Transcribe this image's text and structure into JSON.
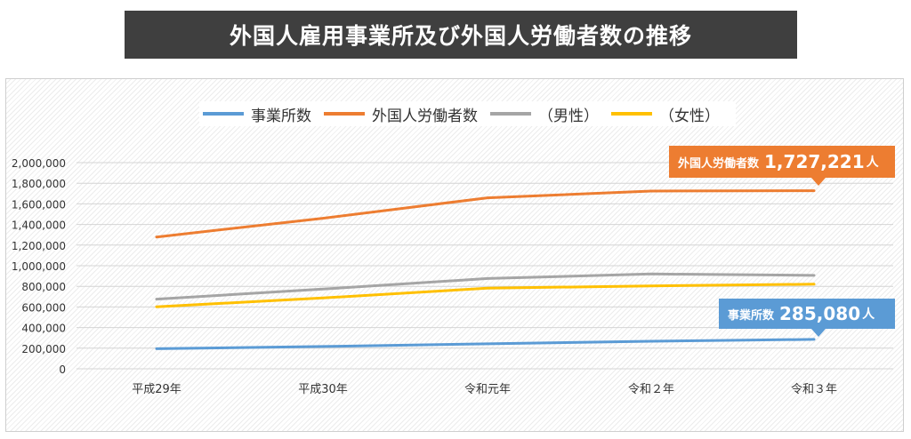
{
  "title": "外国人雇用事業所及び外国人労働者数の推移",
  "legend": [
    {
      "name": "事業所数",
      "color": "#5b9bd5"
    },
    {
      "name": "外国人労働者数",
      "color": "#ed7d31"
    },
    {
      "name": "（男性）",
      "color": "#a5a5a5"
    },
    {
      "name": "（女性）",
      "color": "#ffc000"
    }
  ],
  "callouts": {
    "workers": {
      "label": "外国人労働者数",
      "value": "1,727,221",
      "unit": "人"
    },
    "offices": {
      "label": "事業所数",
      "value": "285,080",
      "unit": "人"
    }
  },
  "chart_data": {
    "type": "line",
    "categories": [
      "平成29年",
      "平成30年",
      "令和元年",
      "令和２年",
      "令和３年"
    ],
    "series": [
      {
        "name": "事業所数",
        "values": [
          194595,
          216348,
          242608,
          267243,
          285080
        ],
        "color": "#5b9bd5"
      },
      {
        "name": "外国人労働者数",
        "values": [
          1278670,
          1460463,
          1658804,
          1724328,
          1727221
        ],
        "color": "#ed7d31"
      },
      {
        "name": "（男性）",
        "values": [
          676000,
          773000,
          876000,
          920000,
          906000
        ],
        "color": "#a5a5a5"
      },
      {
        "name": "（女性）",
        "values": [
          602000,
          687000,
          782000,
          804000,
          821000
        ],
        "color": "#ffc000"
      }
    ],
    "ylim": [
      0,
      2000000
    ],
    "yticks": [
      "0",
      "200,000",
      "400,000",
      "600,000",
      "800,000",
      "1,000,000",
      "1,200,000",
      "1,400,000",
      "1,600,000",
      "1,800,000",
      "2,000,000"
    ],
    "grid": true,
    "legend_position": "top"
  }
}
